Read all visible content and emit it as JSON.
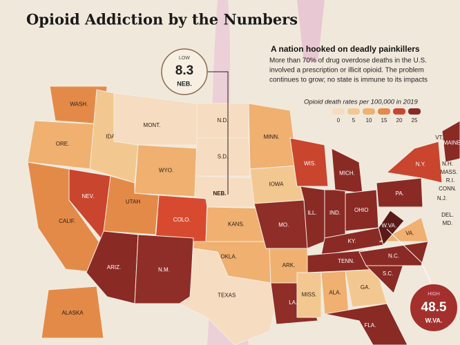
{
  "title": "Opioid Addiction by the Numbers",
  "heading": "A nation hooked on deadly painkillers",
  "body": [
    "More than 70% of drug overdose deaths in the U.S.",
    "involved a prescription or illicit opioid. The problem",
    "continues to grow; no state is immune to its impacts"
  ],
  "legend": {
    "title": "Opioid death rates per 100,000 in 2019",
    "ticks": [
      0,
      5,
      10,
      15,
      20,
      25
    ],
    "colors": [
      "#f6dcc0",
      "#f3c890",
      "#efb070",
      "#e48a48",
      "#c9452e",
      "#8a2a25"
    ]
  },
  "low": {
    "label": "LOW",
    "value": 8.3,
    "state": "NEB."
  },
  "high": {
    "label": "HIGH",
    "value": 48.5,
    "state": "W.VA."
  },
  "states": [
    {
      "label": "WASH.",
      "color": "#e48a48"
    },
    {
      "label": "ORE.",
      "color": "#efb070"
    },
    {
      "label": "CALIF.",
      "color": "#e48a48"
    },
    {
      "label": "NEV.",
      "color": "#c9452e"
    },
    {
      "label": "IDAHO",
      "color": "#f3c890"
    },
    {
      "label": "MONT.",
      "color": "#f6dcc0"
    },
    {
      "label": "WYO.",
      "color": "#efb070"
    },
    {
      "label": "UTAH",
      "color": "#e48a48"
    },
    {
      "label": "COLO.",
      "color": "#d84a30"
    },
    {
      "label": "ARIZ.",
      "color": "#8a2a25"
    },
    {
      "label": "N.M.",
      "color": "#8f2d28"
    },
    {
      "label": "N.D.",
      "color": "#f6dcc0"
    },
    {
      "label": "S.D.",
      "color": "#f6dcc0"
    },
    {
      "label": "NEB.",
      "color": "#f6dcc0"
    },
    {
      "label": "KANS.",
      "color": "#efb070"
    },
    {
      "label": "OKLA.",
      "color": "#efb070"
    },
    {
      "label": "TEXAS",
      "color": "#f6dcc0"
    },
    {
      "label": "MINN.",
      "color": "#efb070"
    },
    {
      "label": "IOWA",
      "color": "#f3c890"
    },
    {
      "label": "MO.",
      "color": "#8f2d28"
    },
    {
      "label": "ARK.",
      "color": "#efb070"
    },
    {
      "label": "LA.",
      "color": "#8f2d28"
    },
    {
      "label": "WIS.",
      "color": "#c9452e"
    },
    {
      "label": "ILL.",
      "color": "#8a2a25"
    },
    {
      "label": "IND.",
      "color": "#8a2a25"
    },
    {
      "label": "MICH.",
      "color": "#8a2a25"
    },
    {
      "label": "OHIO",
      "color": "#8a2a25"
    },
    {
      "label": "KY.",
      "color": "#8a2a25"
    },
    {
      "label": "TENN.",
      "color": "#8a2a25"
    },
    {
      "label": "MISS.",
      "color": "#f3c890"
    },
    {
      "label": "ALA.",
      "color": "#efb070"
    },
    {
      "label": "GA.",
      "color": "#f3c890"
    },
    {
      "label": "FLA.",
      "color": "#8a2a25"
    },
    {
      "label": "S.C.",
      "color": "#8a2a25"
    },
    {
      "label": "N.C.",
      "color": "#8a2a25"
    },
    {
      "label": "VA.",
      "color": "#efb070"
    },
    {
      "label": "W.VA.",
      "color": "#5a1a18"
    },
    {
      "label": "PA.",
      "color": "#8a2a25"
    },
    {
      "label": "N.Y.",
      "color": "#c9452e"
    },
    {
      "label": "MAINE",
      "color": "#8a2a25"
    },
    {
      "label": "ALASKA",
      "color": "#e48a48"
    }
  ],
  "small_states": [
    "VT.",
    "N.H.",
    "MASS.",
    "R.I.",
    "CONN.",
    "N.J.",
    "DEL.",
    "MD."
  ]
}
